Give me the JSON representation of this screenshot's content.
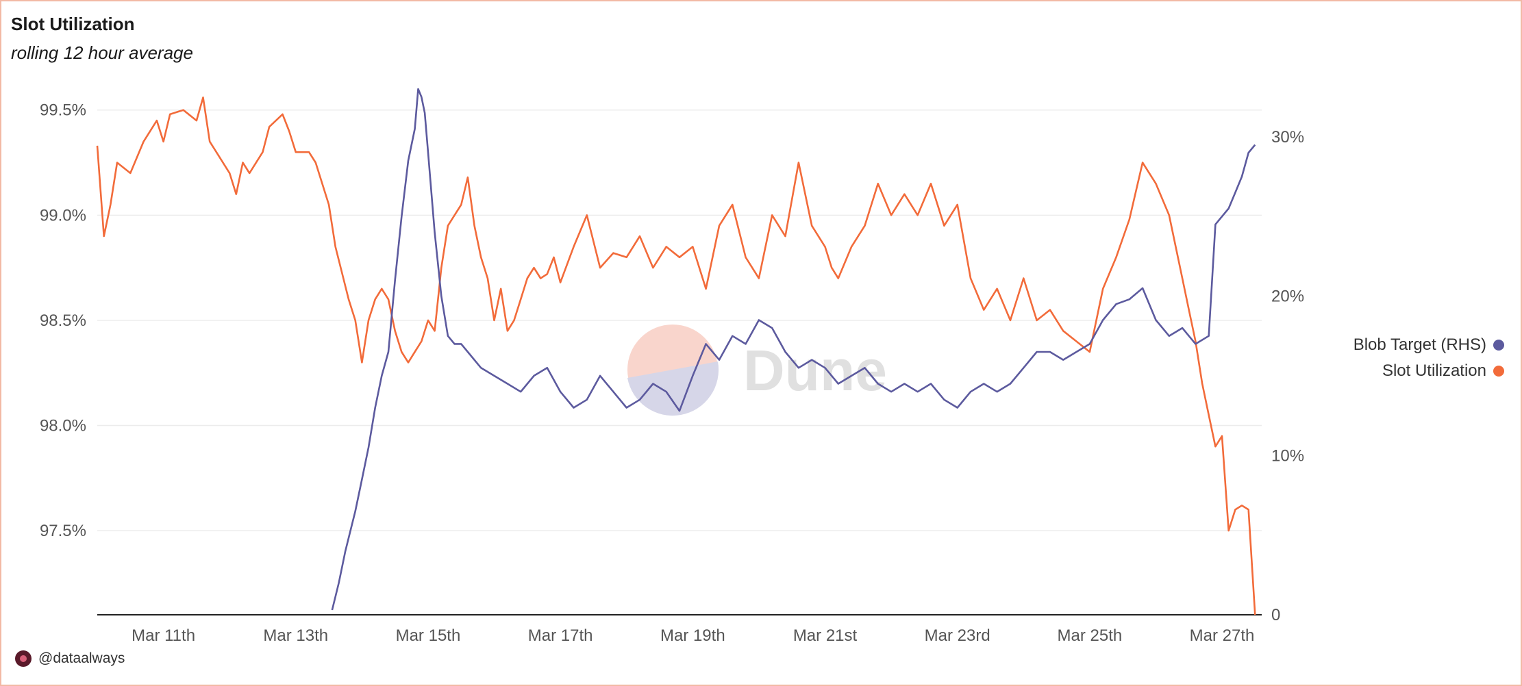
{
  "chart_data": {
    "type": "line",
    "title": "Slot Utilization",
    "subtitle": "rolling 12 hour average",
    "x_dates": [
      "Mar 11th",
      "Mar 13th",
      "Mar 15th",
      "Mar 17th",
      "Mar 19th",
      "Mar 21st",
      "Mar 23rd",
      "Mar 25th",
      "Mar 27th"
    ],
    "x_range": [
      10.0,
      27.6
    ],
    "left_axis": {
      "ticks": [
        "99.5%",
        "99.0%",
        "98.5%",
        "98.0%",
        "97.5%"
      ],
      "tick_values": [
        99.5,
        99.0,
        98.5,
        98.0,
        97.5
      ],
      "range": [
        97.1,
        99.6
      ],
      "unit": "%"
    },
    "right_axis": {
      "ticks": [
        "30%",
        "20%",
        "10%",
        "0"
      ],
      "tick_values": [
        30,
        20,
        10,
        0
      ],
      "range": [
        0,
        33
      ],
      "unit": "%"
    },
    "series": [
      {
        "name": "Slot Utilization",
        "axis": "left",
        "color": "#f26b3a",
        "x": [
          10.0,
          10.1,
          10.2,
          10.3,
          10.5,
          10.7,
          10.9,
          11.0,
          11.1,
          11.3,
          11.5,
          11.6,
          11.7,
          11.8,
          12.0,
          12.1,
          12.2,
          12.3,
          12.5,
          12.6,
          12.8,
          12.9,
          13.0,
          13.2,
          13.3,
          13.5,
          13.6,
          13.8,
          13.9,
          14.0,
          14.1,
          14.2,
          14.3,
          14.4,
          14.5,
          14.6,
          14.7,
          14.8,
          14.9,
          15.0,
          15.1,
          15.2,
          15.3,
          15.4,
          15.5,
          15.6,
          15.7,
          15.8,
          15.9,
          16.0,
          16.1,
          16.2,
          16.3,
          16.4,
          16.5,
          16.6,
          16.7,
          16.8,
          16.9,
          17.0,
          17.2,
          17.4,
          17.6,
          17.8,
          18.0,
          18.2,
          18.4,
          18.6,
          18.8,
          19.0,
          19.2,
          19.4,
          19.6,
          19.8,
          20.0,
          20.2,
          20.4,
          20.6,
          20.8,
          21.0,
          21.1,
          21.2,
          21.4,
          21.6,
          21.8,
          22.0,
          22.2,
          22.4,
          22.6,
          22.8,
          23.0,
          23.2,
          23.4,
          23.6,
          23.8,
          24.0,
          24.2,
          24.4,
          24.6,
          24.8,
          25.0,
          25.2,
          25.4,
          25.6,
          25.8,
          26.0,
          26.2,
          26.4,
          26.5,
          26.6,
          26.7,
          26.8,
          26.9,
          27.0,
          27.1,
          27.2,
          27.3,
          27.4,
          27.5
        ],
        "y": [
          99.33,
          98.9,
          99.05,
          99.25,
          99.2,
          99.35,
          99.45,
          99.35,
          99.48,
          99.5,
          99.45,
          99.56,
          99.35,
          99.3,
          99.2,
          99.1,
          99.25,
          99.2,
          99.3,
          99.42,
          99.48,
          99.4,
          99.3,
          99.3,
          99.25,
          99.05,
          98.85,
          98.6,
          98.5,
          98.3,
          98.5,
          98.6,
          98.65,
          98.6,
          98.45,
          98.35,
          98.3,
          98.35,
          98.4,
          98.5,
          98.45,
          98.75,
          98.95,
          99.0,
          99.05,
          99.18,
          98.95,
          98.8,
          98.7,
          98.5,
          98.65,
          98.45,
          98.5,
          98.6,
          98.7,
          98.75,
          98.7,
          98.72,
          98.8,
          98.68,
          98.85,
          99.0,
          98.75,
          98.82,
          98.8,
          98.9,
          98.75,
          98.85,
          98.8,
          98.85,
          98.65,
          98.95,
          99.05,
          98.8,
          98.7,
          99.0,
          98.9,
          99.25,
          98.95,
          98.85,
          98.75,
          98.7,
          98.85,
          98.95,
          99.15,
          99.0,
          99.1,
          99.0,
          99.15,
          98.95,
          99.05,
          98.7,
          98.55,
          98.65,
          98.5,
          98.7,
          98.5,
          98.55,
          98.45,
          98.4,
          98.35,
          98.65,
          98.8,
          98.98,
          99.25,
          99.15,
          99.0,
          98.7,
          98.55,
          98.4,
          98.2,
          98.05,
          97.9,
          97.95,
          97.5,
          97.6,
          97.62,
          97.6,
          97.1
        ]
      },
      {
        "name": "Blob Target (RHS)",
        "axis": "right",
        "color": "#5c5a9e",
        "x": [
          13.55,
          13.65,
          13.75,
          13.9,
          14.0,
          14.1,
          14.2,
          14.3,
          14.4,
          14.5,
          14.6,
          14.7,
          14.8,
          14.85,
          14.9,
          14.95,
          15.0,
          15.1,
          15.2,
          15.3,
          15.4,
          15.5,
          15.6,
          15.8,
          16.0,
          16.2,
          16.4,
          16.6,
          16.8,
          17.0,
          17.2,
          17.4,
          17.6,
          17.8,
          18.0,
          18.2,
          18.4,
          18.6,
          18.8,
          19.0,
          19.2,
          19.4,
          19.6,
          19.8,
          20.0,
          20.2,
          20.4,
          20.6,
          20.8,
          21.0,
          21.2,
          21.4,
          21.6,
          21.8,
          22.0,
          22.2,
          22.4,
          22.6,
          22.8,
          23.0,
          23.2,
          23.4,
          23.6,
          23.8,
          24.0,
          24.2,
          24.4,
          24.6,
          24.8,
          25.0,
          25.2,
          25.4,
          25.6,
          25.8,
          26.0,
          26.2,
          26.4,
          26.6,
          26.8,
          26.9,
          27.0,
          27.1,
          27.2,
          27.3,
          27.4,
          27.5
        ],
        "y": [
          0.3,
          2.0,
          4.0,
          6.5,
          8.5,
          10.5,
          13.0,
          15.0,
          16.5,
          21.0,
          25.0,
          28.5,
          30.5,
          33.0,
          32.5,
          31.5,
          29.0,
          24.0,
          20.0,
          17.5,
          17.0,
          17.0,
          16.5,
          15.5,
          15.0,
          14.5,
          14.0,
          15.0,
          15.5,
          14.0,
          13.0,
          13.5,
          15.0,
          14.0,
          13.0,
          13.5,
          14.5,
          14.0,
          12.8,
          15.0,
          17.0,
          16.0,
          17.5,
          17.0,
          18.5,
          18.0,
          16.5,
          15.5,
          16.0,
          15.5,
          14.5,
          15.0,
          15.5,
          14.5,
          14.0,
          14.5,
          14.0,
          14.5,
          13.5,
          13.0,
          14.0,
          14.5,
          14.0,
          14.5,
          15.5,
          16.5,
          16.5,
          16.0,
          16.5,
          17.0,
          18.5,
          19.5,
          19.8,
          20.5,
          18.5,
          17.5,
          18.0,
          17.0,
          17.5,
          24.5,
          25.0,
          25.5,
          26.5,
          27.5,
          29.0,
          29.5
        ]
      }
    ],
    "legend_placement": "right",
    "watermark_text": "Dune"
  },
  "footer": {
    "handle": "@dataalways"
  }
}
